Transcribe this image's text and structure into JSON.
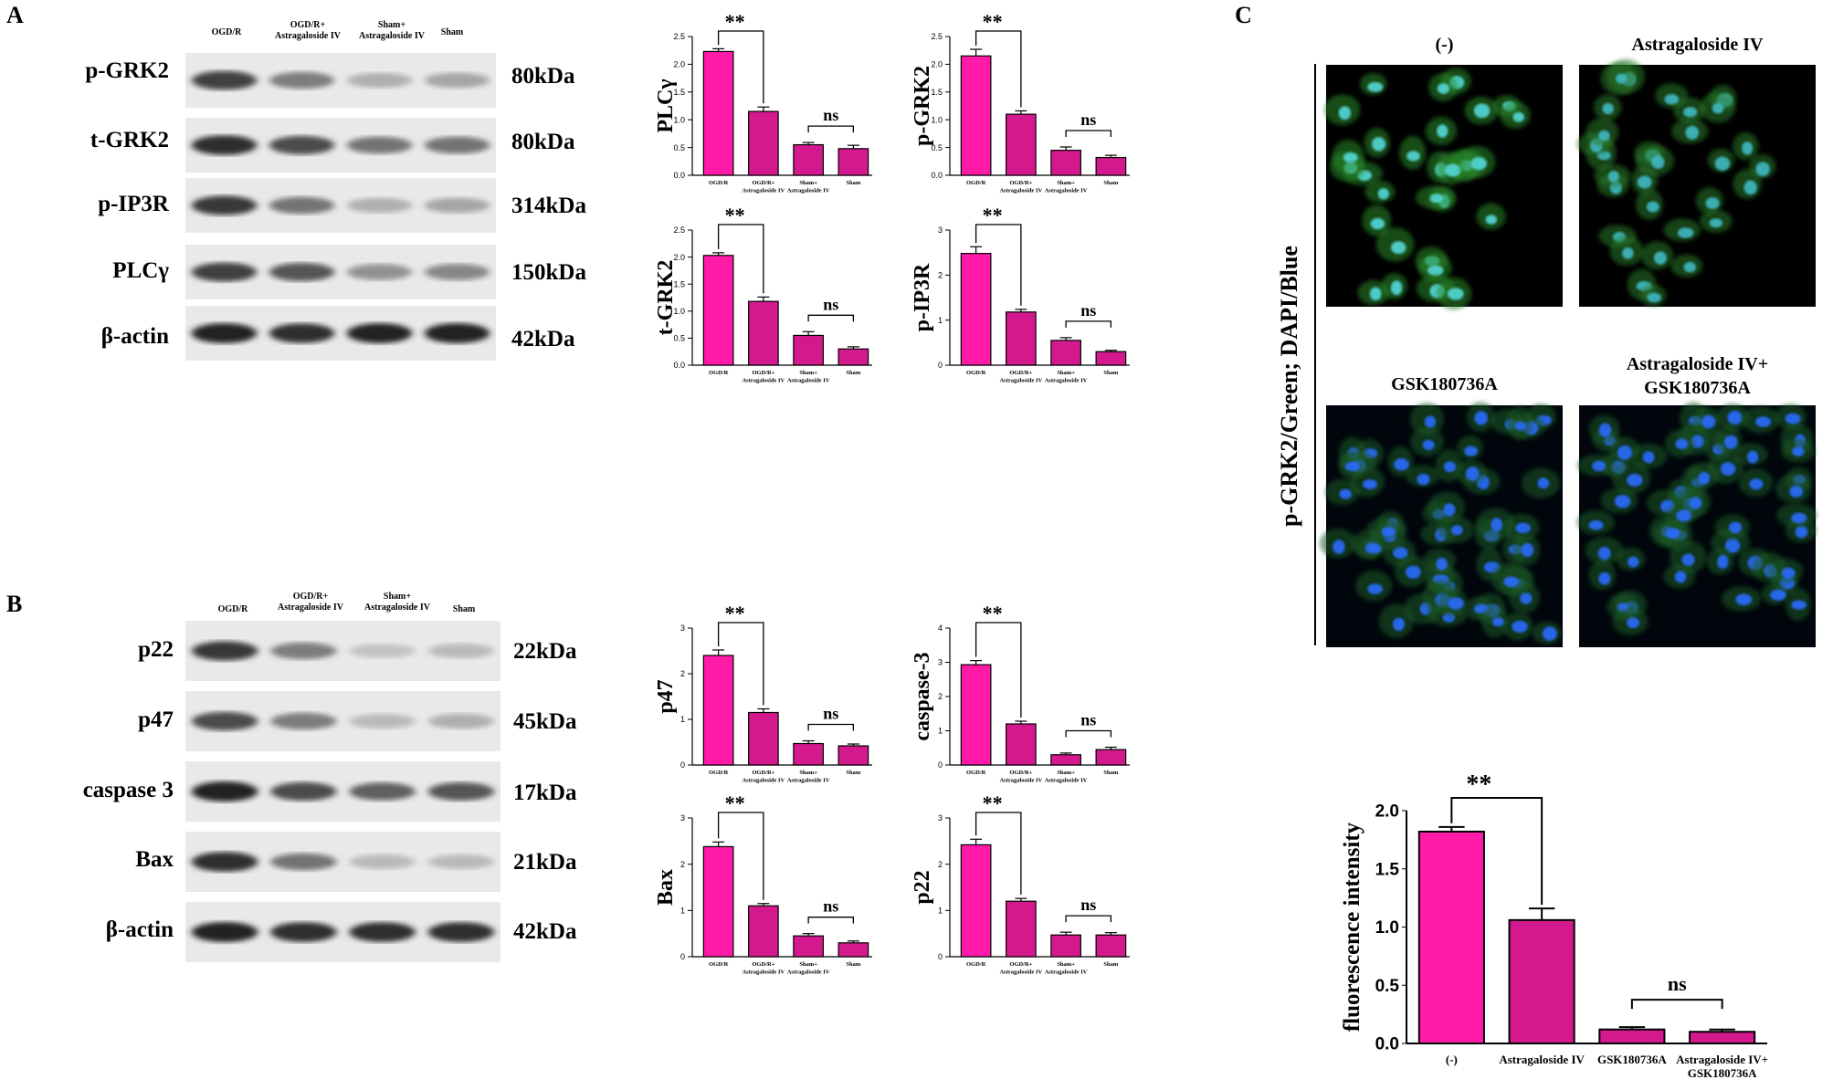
{
  "panelA": {
    "label": "A",
    "lanes": [
      "OGD/R",
      "OGD/R+\nAstragaloside IV",
      "Sham+\nAstragaloside IV",
      "Sham"
    ],
    "blots": [
      {
        "protein": "p-GRK2",
        "kda": "80kDa"
      },
      {
        "protein": "t-GRK2",
        "kda": "80kDa"
      },
      {
        "protein": "p-IP3R",
        "kda": "314kDa"
      },
      {
        "protein": "PLCγ",
        "kda": "150kDa"
      },
      {
        "protein": "β-actin",
        "kda": "42kDa"
      }
    ]
  },
  "panelB": {
    "label": "B",
    "lanes": [
      "OGD/R",
      "OGD/R+\nAstragaloside IV",
      "Sham+\nAstragaloside IV",
      "Sham"
    ],
    "blots": [
      {
        "protein": "p22",
        "kda": "22kDa"
      },
      {
        "protein": "p47",
        "kda": "45kDa"
      },
      {
        "protein": "caspase 3",
        "kda": "17kDa"
      },
      {
        "protein": "Bax",
        "kda": "21kDa"
      },
      {
        "protein": "β-actin",
        "kda": "42kDa"
      }
    ]
  },
  "panelC": {
    "label": "C",
    "image_titles": [
      "(-)",
      "Astragaloside IV",
      "GSK180736A",
      "Astragaloside IV+\nGSK180736A"
    ],
    "stain_label": "p-GRK2/Green; DAPI/Blue"
  },
  "colors": {
    "bar_primary": "#ff1aa8",
    "bar_secondary": "#d4198f",
    "bar_edge": "#000000"
  },
  "chart_data": [
    {
      "type": "bar",
      "ylabel": "PLCγ",
      "categories": [
        "OGD/R",
        "OGD/R+\nAstragaloside IV",
        "Sham+\nAstragaloside IV",
        "Sham"
      ],
      "values": [
        2.23,
        1.15,
        0.55,
        0.48
      ],
      "errors": [
        0.05,
        0.08,
        0.04,
        0.06
      ],
      "ylim": [
        0,
        2.5
      ],
      "yticks": [
        "0.0",
        "0.5",
        "1.0",
        "1.5",
        "2.0",
        "2.5"
      ],
      "sig": [
        {
          "from": 0,
          "to": 1,
          "text": "**"
        },
        {
          "from": 2,
          "to": 3,
          "text": "ns"
        }
      ]
    },
    {
      "type": "bar",
      "ylabel": "p-GRK2",
      "categories": [
        "OGD/R",
        "OGD/R+\nAstragaloside IV",
        "Sham+\nAstragaloside IV",
        "Sham"
      ],
      "values": [
        2.15,
        1.1,
        0.45,
        0.32
      ],
      "errors": [
        0.12,
        0.06,
        0.06,
        0.04
      ],
      "ylim": [
        0,
        2.5
      ],
      "yticks": [
        "0.0",
        "0.5",
        "1.0",
        "1.5",
        "2.0",
        "2.5"
      ],
      "sig": [
        {
          "from": 0,
          "to": 1,
          "text": "**"
        },
        {
          "from": 2,
          "to": 3,
          "text": "ns"
        }
      ]
    },
    {
      "type": "bar",
      "ylabel": "t-GRK2",
      "categories": [
        "OGD/R",
        "OGD/R+\nAstragaloside IV",
        "Sham+\nAstragaloside IV",
        "Sham"
      ],
      "values": [
        2.03,
        1.18,
        0.55,
        0.3
      ],
      "errors": [
        0.05,
        0.08,
        0.07,
        0.04
      ],
      "ylim": [
        0,
        2.5
      ],
      "yticks": [
        "0.0",
        "0.5",
        "1.0",
        "1.5",
        "2.0",
        "2.5"
      ],
      "sig": [
        {
          "from": 0,
          "to": 1,
          "text": "**"
        },
        {
          "from": 2,
          "to": 3,
          "text": "ns"
        }
      ]
    },
    {
      "type": "bar",
      "ylabel": "p-IP3R",
      "categories": [
        "OGD/R",
        "OGD/R+\nAstragaloside IV",
        "Sham+\nAstragaloside IV",
        "Sham"
      ],
      "values": [
        2.48,
        1.18,
        0.55,
        0.3
      ],
      "errors": [
        0.15,
        0.06,
        0.06,
        0.03
      ],
      "ylim": [
        0,
        3
      ],
      "yticks": [
        "0",
        "1",
        "2",
        "3"
      ],
      "sig": [
        {
          "from": 0,
          "to": 1,
          "text": "**"
        },
        {
          "from": 2,
          "to": 3,
          "text": "ns"
        }
      ]
    },
    {
      "type": "bar",
      "ylabel": "p47",
      "categories": [
        "OGD/R",
        "OGD/R+\nAstragaloside IV",
        "Sham+\nAstragaloside IV",
        "Sham"
      ],
      "values": [
        2.4,
        1.15,
        0.47,
        0.42
      ],
      "errors": [
        0.12,
        0.08,
        0.06,
        0.04
      ],
      "ylim": [
        0,
        3
      ],
      "yticks": [
        "0",
        "1",
        "2",
        "3"
      ],
      "sig": [
        {
          "from": 0,
          "to": 1,
          "text": "**"
        },
        {
          "from": 2,
          "to": 3,
          "text": "ns"
        }
      ]
    },
    {
      "type": "bar",
      "ylabel": "caspase-3",
      "categories": [
        "OGD/R",
        "OGD/R+\nAstragaloside IV",
        "Sham+\nAstragaloside IV",
        "Sham"
      ],
      "values": [
        2.93,
        1.2,
        0.3,
        0.45
      ],
      "errors": [
        0.12,
        0.08,
        0.05,
        0.07
      ],
      "ylim": [
        0,
        4
      ],
      "yticks": [
        "0",
        "1",
        "2",
        "3",
        "4"
      ],
      "sig": [
        {
          "from": 0,
          "to": 1,
          "text": "**"
        },
        {
          "from": 2,
          "to": 3,
          "text": "ns"
        }
      ]
    },
    {
      "type": "bar",
      "ylabel": "Bax",
      "categories": [
        "OGD/R",
        "OGD/R+\nAstragaloside IV",
        "Sham+\nAstragaloside IV",
        "Sham"
      ],
      "values": [
        2.38,
        1.1,
        0.45,
        0.3
      ],
      "errors": [
        0.1,
        0.05,
        0.05,
        0.04
      ],
      "ylim": [
        0,
        3
      ],
      "yticks": [
        "0",
        "1",
        "2",
        "3"
      ],
      "sig": [
        {
          "from": 0,
          "to": 1,
          "text": "**"
        },
        {
          "from": 2,
          "to": 3,
          "text": "ns"
        }
      ]
    },
    {
      "type": "bar",
      "ylabel": "p22",
      "categories": [
        "OGD/R",
        "OGD/R+\nAstragaloside IV",
        "Sham+\nAstragaloside IV",
        "Sham"
      ],
      "values": [
        2.42,
        1.2,
        0.47,
        0.47
      ],
      "errors": [
        0.12,
        0.06,
        0.06,
        0.05
      ],
      "ylim": [
        0,
        3
      ],
      "yticks": [
        "0",
        "1",
        "2",
        "3"
      ],
      "sig": [
        {
          "from": 0,
          "to": 1,
          "text": "**"
        },
        {
          "from": 2,
          "to": 3,
          "text": "ns"
        }
      ]
    },
    {
      "type": "bar",
      "ylabel": "fluorescence intensity",
      "categories": [
        "(-)",
        "Astragaloside IV",
        "GSK180736A",
        "Astragaloside IV+\nGSK180736A"
      ],
      "values": [
        1.82,
        1.06,
        0.12,
        0.1
      ],
      "errors": [
        0.04,
        0.1,
        0.02,
        0.02
      ],
      "ylim": [
        0,
        2.0
      ],
      "yticks": [
        "0.0",
        "0.5",
        "1.0",
        "1.5",
        "2.0"
      ],
      "sig": [
        {
          "from": 0,
          "to": 1,
          "text": "**"
        },
        {
          "from": 2,
          "to": 3,
          "text": "ns"
        }
      ]
    }
  ]
}
